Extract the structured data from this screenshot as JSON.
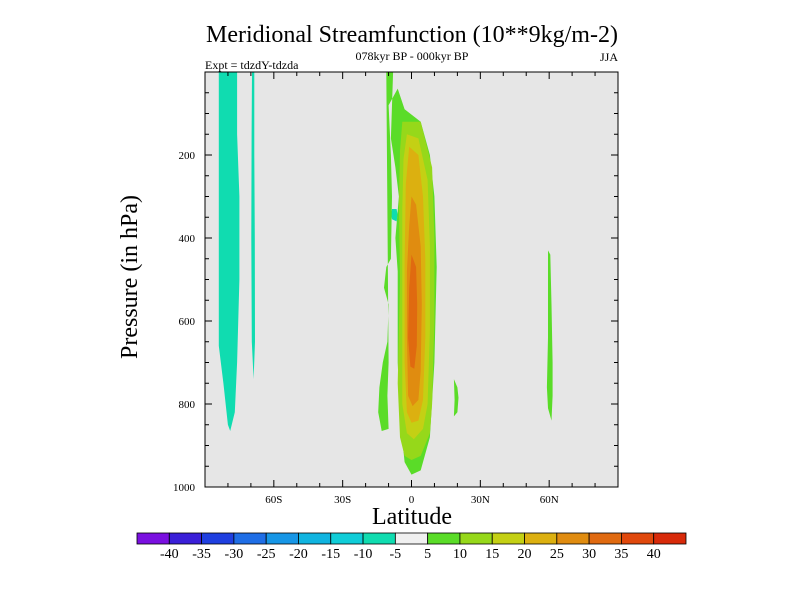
{
  "chart_data": {
    "type": "contour",
    "title": "Meridional Streamfunction (10**9kg/m-2)",
    "subtitle": "078kyr BP - 000kyr BP",
    "left_label": "Expt = tdzdY-tdzda",
    "right_label": "JJA",
    "xlabel": "Latitude",
    "ylabel": "Pressure (in hPa)",
    "xlim": [
      -90,
      90
    ],
    "ylim": [
      1000,
      0
    ],
    "x_ticks": [
      {
        "value": -60,
        "label": "60S"
      },
      {
        "value": -30,
        "label": "30S"
      },
      {
        "value": 0,
        "label": "0"
      },
      {
        "value": 30,
        "label": "30N"
      },
      {
        "value": 60,
        "label": "60N"
      }
    ],
    "y_ticks": [
      {
        "value": 200,
        "label": "200"
      },
      {
        "value": 400,
        "label": "400"
      },
      {
        "value": 600,
        "label": "600"
      },
      {
        "value": 800,
        "label": "800"
      },
      {
        "value": 1000,
        "label": "1000"
      }
    ],
    "background_color": "#e6e6e6",
    "colorbar": {
      "labels": [
        "-40",
        "-35",
        "-30",
        "-25",
        "-20",
        "-15",
        "-10",
        "-5",
        "5",
        "10",
        "15",
        "20",
        "25",
        "30",
        "35",
        "40"
      ],
      "colors": [
        "#7a10e0",
        "#3a1fd8",
        "#1f3fe0",
        "#1f6ee6",
        "#1796e6",
        "#10b4e0",
        "#10cdd8",
        "#10dcb0",
        "#f0f0f0",
        "#5adc28",
        "#96d81a",
        "#c4d014",
        "#dcb010",
        "#e08c10",
        "#e06a10",
        "#e0480c",
        "#d82a0a"
      ]
    },
    "regions": [
      {
        "level": -10,
        "color": "#10dcb0",
        "points": [
          [
            -84,
            0
          ],
          [
            -76,
            0
          ],
          [
            -76,
            150
          ],
          [
            -75,
            300
          ],
          [
            -75,
            500
          ],
          [
            -76,
            700
          ],
          [
            -77,
            820
          ],
          [
            -79,
            865
          ],
          [
            -80,
            850
          ],
          [
            -82,
            750
          ],
          [
            -84,
            660
          ],
          [
            -84,
            400
          ]
        ]
      },
      {
        "level": -10,
        "color": "#10dcb0",
        "points": [
          [
            -69.5,
            0
          ],
          [
            -68.5,
            0
          ],
          [
            -68.5,
            200
          ],
          [
            -68.3,
            400
          ],
          [
            -68.2,
            650
          ],
          [
            -68.8,
            740
          ],
          [
            -69.6,
            650
          ],
          [
            -69.8,
            400
          ],
          [
            -69.7,
            150
          ]
        ]
      },
      {
        "level": -10,
        "color": "#10dcb0",
        "points": [
          [
            -8.5,
            330
          ],
          [
            -6.5,
            330
          ],
          [
            -6,
            345
          ],
          [
            -6.5,
            360
          ],
          [
            -8.5,
            355
          ],
          [
            -9,
            343
          ]
        ]
      },
      {
        "level": 5,
        "color": "#5adc28",
        "points": [
          [
            -11,
            0
          ],
          [
            -8,
            0
          ],
          [
            -8.5,
            80
          ],
          [
            -9,
            160
          ],
          [
            -7,
            230
          ],
          [
            -5.5,
            300
          ],
          [
            -7,
            400
          ],
          [
            -6,
            480
          ],
          [
            -6,
            700
          ],
          [
            -5,
            830
          ],
          [
            -3,
            940
          ],
          [
            0,
            970
          ],
          [
            4,
            960
          ],
          [
            8,
            880
          ],
          [
            10,
            700
          ],
          [
            11,
            470
          ],
          [
            10,
            300
          ],
          [
            8,
            200
          ],
          [
            4,
            120
          ],
          [
            -3,
            90
          ],
          [
            -6,
            40
          ],
          [
            -10,
            80
          ],
          [
            -9,
            200
          ],
          [
            -8.5,
            300
          ],
          [
            -9,
            450
          ],
          [
            -11,
            470
          ],
          [
            -12,
            520
          ],
          [
            -10,
            560
          ],
          [
            -10.5,
            650
          ],
          [
            -12.5,
            700
          ],
          [
            -14,
            760
          ],
          [
            -14.5,
            820
          ],
          [
            -13,
            865
          ],
          [
            -10,
            860
          ],
          [
            -10.5,
            780
          ],
          [
            -10,
            700
          ]
        ]
      },
      {
        "level": 5,
        "color": "#5adc28",
        "points": [
          [
            18.5,
            740
          ],
          [
            20,
            760
          ],
          [
            20.5,
            785
          ],
          [
            20,
            820
          ],
          [
            18.5,
            830
          ],
          [
            18.8,
            790
          ]
        ]
      },
      {
        "level": 5,
        "color": "#5adc28",
        "points": [
          [
            59.5,
            430
          ],
          [
            60.5,
            440
          ],
          [
            61,
            560
          ],
          [
            61.5,
            700
          ],
          [
            61.5,
            780
          ],
          [
            61,
            840
          ],
          [
            59.5,
            810
          ],
          [
            59,
            760
          ],
          [
            59.5,
            640
          ],
          [
            59.5,
            520
          ]
        ]
      },
      {
        "level": 10,
        "color": "#96d81a",
        "points": [
          [
            -4,
            120
          ],
          [
            4,
            120
          ],
          [
            9,
            230
          ],
          [
            10,
            400
          ],
          [
            10,
            600
          ],
          [
            9,
            800
          ],
          [
            8,
            870
          ],
          [
            4,
            925
          ],
          [
            0,
            935
          ],
          [
            -3,
            925
          ],
          [
            -5,
            880
          ],
          [
            -6,
            750
          ],
          [
            -5,
            500
          ],
          [
            -5.5,
            320
          ],
          [
            -5,
            190
          ]
        ]
      },
      {
        "level": 15,
        "color": "#c4d014",
        "points": [
          [
            -2,
            150
          ],
          [
            3,
            160
          ],
          [
            7,
            260
          ],
          [
            8,
            420
          ],
          [
            8,
            620
          ],
          [
            7,
            800
          ],
          [
            5,
            860
          ],
          [
            1,
            885
          ],
          [
            -2,
            870
          ],
          [
            -4,
            800
          ],
          [
            -4,
            560
          ],
          [
            -4,
            330
          ],
          [
            -3.5,
            210
          ]
        ]
      },
      {
        "level": 20,
        "color": "#dcb010",
        "points": [
          [
            -1,
            180
          ],
          [
            3,
            200
          ],
          [
            5,
            300
          ],
          [
            6,
            450
          ],
          [
            6,
            640
          ],
          [
            5,
            790
          ],
          [
            3,
            840
          ],
          [
            0,
            845
          ],
          [
            -2,
            820
          ],
          [
            -3,
            700
          ],
          [
            -3,
            460
          ],
          [
            -2.5,
            270
          ]
        ]
      },
      {
        "level": 25,
        "color": "#e08c10",
        "points": [
          [
            0,
            300
          ],
          [
            2,
            320
          ],
          [
            4,
            420
          ],
          [
            4.5,
            560
          ],
          [
            4,
            720
          ],
          [
            3,
            790
          ],
          [
            0.5,
            805
          ],
          [
            -1.5,
            780
          ],
          [
            -2,
            640
          ],
          [
            -2,
            480
          ],
          [
            -1,
            370
          ]
        ]
      },
      {
        "level": 30,
        "color": "#e06a10",
        "points": [
          [
            0,
            440
          ],
          [
            2,
            470
          ],
          [
            2.5,
            560
          ],
          [
            2.3,
            660
          ],
          [
            1.2,
            715
          ],
          [
            -0.5,
            710
          ],
          [
            -1.5,
            640
          ],
          [
            -1,
            520
          ]
        ]
      }
    ]
  }
}
